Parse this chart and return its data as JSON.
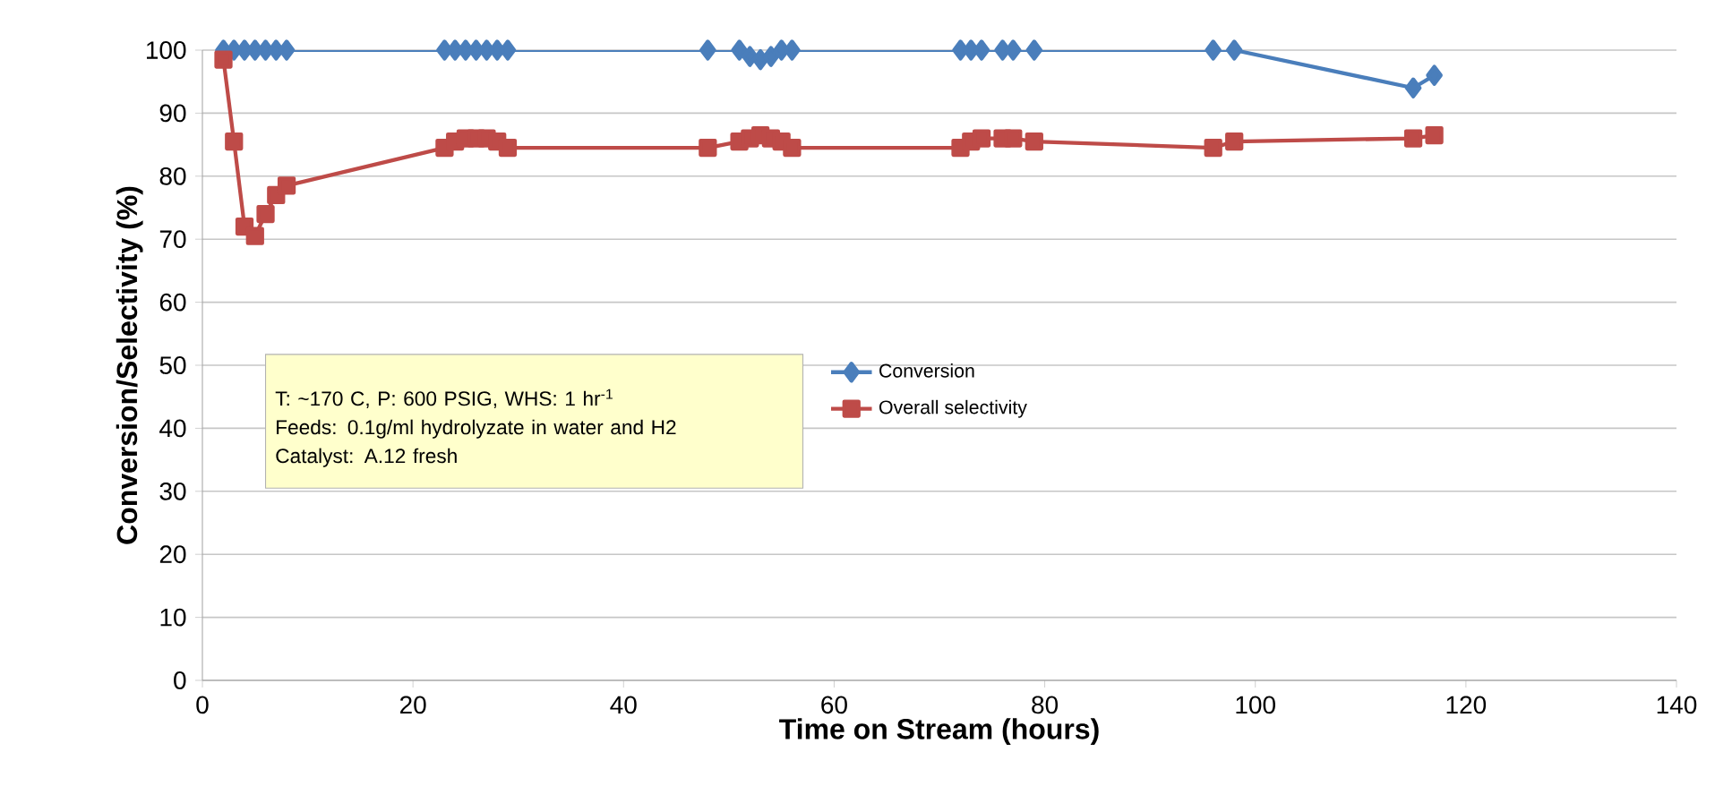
{
  "chart_data": {
    "type": "line",
    "xlabel": "Time on Stream (hours)",
    "ylabel": "Conversion/Selectivity (%)",
    "xlim": [
      0,
      140
    ],
    "xticks": [
      0,
      20,
      40,
      60,
      80,
      100,
      120,
      140
    ],
    "ylim": [
      0,
      100
    ],
    "yticks": [
      0,
      10,
      20,
      30,
      40,
      50,
      60,
      70,
      80,
      90,
      100
    ],
    "grid": "y",
    "legend": "center",
    "annotations": [
      "T: ~170 C,  P: 600 PSIG, WHS: 1 hr$^{-1}$",
      "Feeds: 0.1g/ml hydrolyzate in water and H2",
      "Catalyst:  A.12 fresh"
    ],
    "series": [
      {
        "name": "Conversion",
        "color": "#4a7ebb",
        "marker": "diamond",
        "x": [
          2,
          3,
          4,
          5,
          6,
          7,
          8,
          23,
          24,
          25,
          26,
          27,
          28,
          29,
          48,
          51,
          52,
          53,
          54,
          55,
          56,
          72,
          73,
          74,
          76,
          77,
          79,
          96,
          98,
          115,
          117
        ],
        "values": [
          100,
          100,
          100,
          100,
          100,
          100,
          100,
          100,
          100,
          100,
          100,
          100,
          100,
          100,
          100,
          100,
          99,
          98.5,
          99,
          100,
          100,
          100,
          100,
          100,
          100,
          100,
          100,
          100,
          100,
          94,
          96
        ]
      },
      {
        "name": "Overall selectivity",
        "color": "#be4b48",
        "marker": "square",
        "x": [
          2,
          3,
          4,
          5,
          6,
          7,
          8,
          23,
          24,
          25,
          26,
          27,
          28,
          29,
          48,
          51,
          52,
          53,
          54,
          55,
          56,
          72,
          73,
          74,
          76,
          77,
          79,
          96,
          98,
          115,
          117
        ],
        "values": [
          98.5,
          85.5,
          72,
          70.5,
          74,
          77,
          78.5,
          84.5,
          85.5,
          86,
          86,
          86,
          85.5,
          84.5,
          84.5,
          85.5,
          86,
          86.5,
          86,
          85.5,
          84.5,
          84.5,
          85.5,
          86,
          86,
          86,
          85.5,
          84.5,
          85.5,
          86,
          86.5
        ]
      }
    ]
  }
}
